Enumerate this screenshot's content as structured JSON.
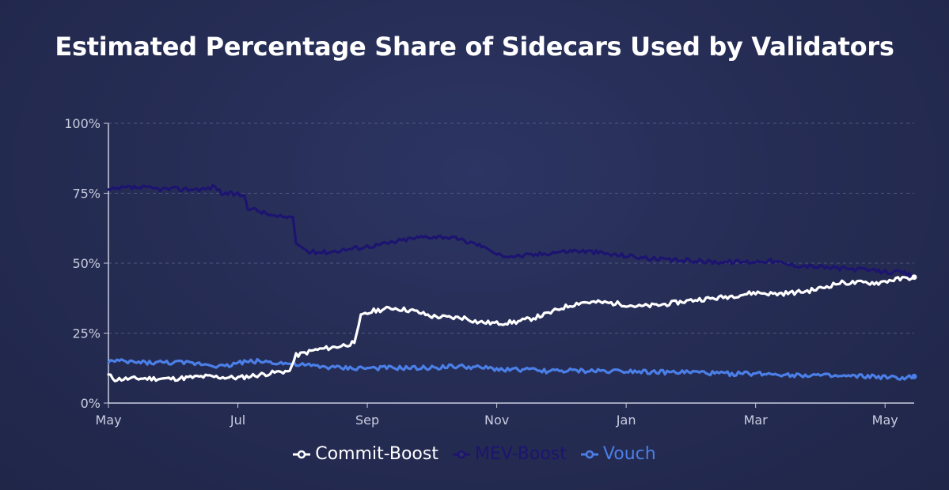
{
  "chart_data": {
    "type": "line",
    "title": "Estimated Percentage Share of Sidecars Used by Validators",
    "xlabel": "",
    "ylabel": "",
    "ylim": [
      0,
      100
    ],
    "x_range": [
      "May",
      "May"
    ],
    "x_ticks": [
      {
        "label": "May",
        "month_index": 0
      },
      {
        "label": "Jul",
        "month_index": 2
      },
      {
        "label": "Sep",
        "month_index": 4
      },
      {
        "label": "Nov",
        "month_index": 6
      },
      {
        "label": "Jan",
        "month_index": 8
      },
      {
        "label": "Mar",
        "month_index": 10
      },
      {
        "label": "May",
        "month_index": 12
      }
    ],
    "x_end_month_index": 12.45,
    "y_ticks": [
      {
        "label": "0%",
        "value": 0
      },
      {
        "label": "25%",
        "value": 25
      },
      {
        "label": "50%",
        "value": 50
      },
      {
        "label": "75%",
        "value": 75
      },
      {
        "label": "100%",
        "value": 100
      }
    ],
    "grid": true,
    "legend_position": "bottom-center",
    "series": [
      {
        "name": "Commit-Boost",
        "color": "#ffffff",
        "points": [
          [
            0,
            10
          ],
          [
            0.1,
            8.5
          ],
          [
            0.5,
            8.8
          ],
          [
            1.0,
            8.7
          ],
          [
            1.5,
            9.5
          ],
          [
            2.0,
            9.0
          ],
          [
            2.3,
            10.0
          ],
          [
            2.6,
            11.0
          ],
          [
            2.8,
            11.5
          ],
          [
            2.9,
            17
          ],
          [
            3.2,
            19
          ],
          [
            3.5,
            20
          ],
          [
            3.7,
            21
          ],
          [
            3.8,
            21.5
          ],
          [
            3.9,
            31
          ],
          [
            4.1,
            33
          ],
          [
            4.4,
            34
          ],
          [
            4.7,
            33
          ],
          [
            5.0,
            31
          ],
          [
            5.3,
            30.5
          ],
          [
            5.5,
            30.5
          ],
          [
            5.7,
            29
          ],
          [
            6.0,
            28.5
          ],
          [
            6.3,
            29
          ],
          [
            6.5,
            30
          ],
          [
            6.8,
            32
          ],
          [
            7.0,
            34
          ],
          [
            7.3,
            36
          ],
          [
            7.6,
            36
          ],
          [
            7.9,
            35.5
          ],
          [
            8.2,
            34.5
          ],
          [
            8.5,
            35
          ],
          [
            8.8,
            36
          ],
          [
            9.1,
            37
          ],
          [
            9.4,
            37.5
          ],
          [
            9.7,
            38.5
          ],
          [
            10.0,
            39.5
          ],
          [
            10.3,
            39
          ],
          [
            10.6,
            39.5
          ],
          [
            10.8,
            40
          ],
          [
            11.0,
            41
          ],
          [
            11.3,
            43
          ],
          [
            11.6,
            43
          ],
          [
            11.9,
            43
          ],
          [
            12.1,
            44
          ],
          [
            12.3,
            44.5
          ],
          [
            12.45,
            45
          ]
        ]
      },
      {
        "name": "MEV-Boost",
        "color": "#1c1470",
        "points": [
          [
            0,
            76
          ],
          [
            0.3,
            77
          ],
          [
            0.5,
            77
          ],
          [
            0.8,
            76.5
          ],
          [
            1.2,
            76.5
          ],
          [
            1.5,
            76.5
          ],
          [
            1.65,
            77.5
          ],
          [
            1.75,
            75
          ],
          [
            2.0,
            74.5
          ],
          [
            2.1,
            74
          ],
          [
            2.15,
            70
          ],
          [
            2.4,
            68
          ],
          [
            2.6,
            66.5
          ],
          [
            2.85,
            66.5
          ],
          [
            2.9,
            57
          ],
          [
            3.1,
            54
          ],
          [
            3.4,
            54
          ],
          [
            3.7,
            55
          ],
          [
            4.0,
            56
          ],
          [
            4.3,
            57
          ],
          [
            4.6,
            58.5
          ],
          [
            4.9,
            59.5
          ],
          [
            5.2,
            59.5
          ],
          [
            5.5,
            58
          ],
          [
            5.8,
            56
          ],
          [
            6.0,
            53
          ],
          [
            6.3,
            52.5
          ],
          [
            6.6,
            53
          ],
          [
            6.9,
            54
          ],
          [
            7.2,
            54.5
          ],
          [
            7.5,
            54
          ],
          [
            7.8,
            53
          ],
          [
            8.1,
            52.5
          ],
          [
            8.4,
            51.5
          ],
          [
            8.7,
            51
          ],
          [
            9.0,
            51
          ],
          [
            9.3,
            50.5
          ],
          [
            9.6,
            50.5
          ],
          [
            9.9,
            50.5
          ],
          [
            10.2,
            51
          ],
          [
            10.5,
            49.5
          ],
          [
            10.8,
            49
          ],
          [
            11.1,
            48.5
          ],
          [
            11.4,
            48
          ],
          [
            11.7,
            47.5
          ],
          [
            12.0,
            47
          ],
          [
            12.3,
            46.5
          ],
          [
            12.45,
            45
          ]
        ]
      },
      {
        "name": "Vouch",
        "color": "#4b7fe8",
        "points": [
          [
            0,
            15
          ],
          [
            0.5,
            14.5
          ],
          [
            1.0,
            14.5
          ],
          [
            1.5,
            14
          ],
          [
            1.8,
            13
          ],
          [
            2.0,
            14.5
          ],
          [
            2.3,
            15
          ],
          [
            2.6,
            14.5
          ],
          [
            3.0,
            13.5
          ],
          [
            3.3,
            13
          ],
          [
            3.6,
            12.5
          ],
          [
            4.0,
            12.5
          ],
          [
            4.3,
            12.5
          ],
          [
            4.6,
            12.5
          ],
          [
            4.9,
            12.5
          ],
          [
            5.2,
            13
          ],
          [
            5.5,
            13
          ],
          [
            5.8,
            12.5
          ],
          [
            6.1,
            12
          ],
          [
            6.4,
            12
          ],
          [
            6.7,
            11.5
          ],
          [
            7.0,
            11.5
          ],
          [
            7.3,
            11.5
          ],
          [
            7.6,
            11.5
          ],
          [
            7.9,
            11.5
          ],
          [
            8.2,
            11.5
          ],
          [
            8.5,
            11
          ],
          [
            8.8,
            11
          ],
          [
            9.1,
            11
          ],
          [
            9.4,
            10.5
          ],
          [
            9.7,
            10.5
          ],
          [
            10.0,
            10.5
          ],
          [
            10.3,
            10.5
          ],
          [
            10.6,
            10
          ],
          [
            10.9,
            10
          ],
          [
            11.2,
            9.5
          ],
          [
            11.5,
            9.5
          ],
          [
            11.8,
            9.5
          ],
          [
            12.1,
            9
          ],
          [
            12.3,
            9
          ],
          [
            12.45,
            9.5
          ]
        ]
      }
    ]
  },
  "legend": {
    "items": [
      {
        "label": "Commit-Boost",
        "color": "#ffffff"
      },
      {
        "label": "MEV-Boost",
        "color": "#1c1470"
      },
      {
        "label": "Vouch",
        "color": "#4b7fe8"
      }
    ]
  }
}
